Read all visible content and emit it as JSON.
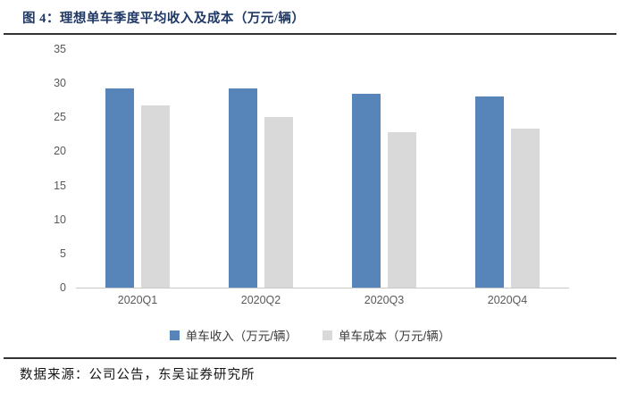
{
  "figure": {
    "title": "图 4：理想单车季度平均收入及成本（万元/辆）",
    "source_note": "数据来源：公司公告，东吴证券研究所"
  },
  "colors": {
    "background": "#FFFFFF",
    "title_text": "#1F3864",
    "rule": "#333333",
    "axis_label": "#595959",
    "legend_label": "#3B3B3B",
    "baseline": "#C8C8C8",
    "bar_revenue_blue": "#5784B9",
    "bar_cost_gray": "#D9D9D9"
  },
  "chart_data": {
    "type": "bar",
    "title": "理想单车季度平均收入及成本（万元/辆）",
    "categories": [
      "2020Q1",
      "2020Q2",
      "2020Q3",
      "2020Q4"
    ],
    "series": [
      {
        "key": "revenue",
        "name": "单车收入（万元/辆）",
        "color": "#5784B9",
        "values": [
          29.2,
          29.2,
          28.4,
          28.1
        ]
      },
      {
        "key": "cost",
        "name": "单车成本（万元/辆）",
        "color": "#D9D9D9",
        "values": [
          26.7,
          25.0,
          22.8,
          23.3
        ]
      }
    ],
    "xlabel": "",
    "ylabel": "",
    "ylim": [
      0,
      35
    ],
    "ytick_step": 5,
    "yticks": [
      35,
      30,
      25,
      20,
      15,
      10,
      5,
      0
    ],
    "grid": false,
    "legend_position": "bottom"
  }
}
